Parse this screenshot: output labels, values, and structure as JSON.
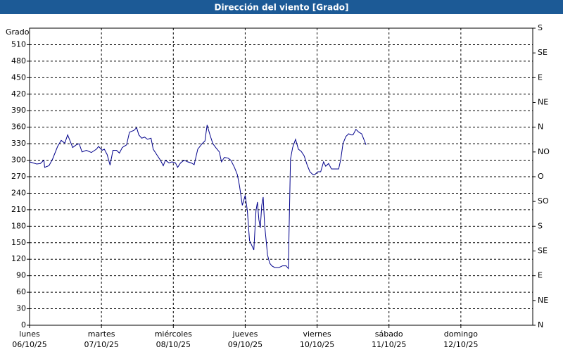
{
  "chart_data": {
    "type": "line",
    "title": "Dirección del viento [Grado]",
    "ylabel": "Grado",
    "color": "#00008b",
    "grid": true,
    "x": [
      0,
      0.1,
      0.15,
      0.2,
      0.21,
      0.27,
      0.32,
      0.39,
      0.44,
      0.49,
      0.53,
      0.57,
      0.6,
      0.65,
      0.69,
      0.73,
      0.79,
      0.86,
      0.93,
      0.96,
      1.01,
      1.04,
      1.08,
      1.12,
      1.16,
      1.21,
      1.25,
      1.29,
      1.35,
      1.39,
      1.45,
      1.49,
      1.52,
      1.56,
      1.6,
      1.64,
      1.69,
      1.72,
      1.77,
      1.82,
      1.86,
      1.89,
      1.94,
      1.98,
      2.03,
      2.06,
      2.1,
      2.15,
      2.2,
      2.25,
      2.29,
      2.34,
      2.4,
      2.44,
      2.47,
      2.51,
      2.55,
      2.59,
      2.64,
      2.67,
      2.71,
      2.76,
      2.8,
      2.85,
      2.89,
      2.92,
      2.96,
      3.0,
      3.03,
      3.06,
      3.12,
      3.15,
      3.17,
      3.19,
      3.21,
      3.23,
      3.25,
      3.27,
      3.29,
      3.31,
      3.34,
      3.37,
      3.41,
      3.47,
      3.52,
      3.57,
      3.6,
      3.63,
      3.66,
      3.7,
      3.74,
      3.78,
      3.82,
      3.86,
      3.9,
      3.94,
      3.97,
      4.01,
      4.05,
      4.09,
      4.12,
      4.16,
      4.2,
      4.26,
      4.3,
      4.33,
      4.36,
      4.4,
      4.44,
      4.47,
      4.5,
      4.54,
      4.58,
      4.62,
      4.65,
      4.68
    ],
    "values": [
      297,
      293,
      294,
      300,
      287,
      290,
      302,
      325,
      336,
      331,
      346,
      333,
      323,
      328,
      330,
      315,
      318,
      314,
      320,
      325,
      318,
      320,
      310,
      291,
      318,
      318,
      313,
      323,
      328,
      351,
      354,
      359,
      346,
      340,
      342,
      338,
      340,
      320,
      310,
      300,
      290,
      300,
      295,
      297,
      295,
      287,
      295,
      300,
      297,
      295,
      292,
      320,
      330,
      335,
      364,
      346,
      330,
      323,
      315,
      297,
      305,
      304,
      300,
      287,
      274,
      254,
      218,
      236,
      208,
      154,
      137,
      208,
      224,
      192,
      177,
      218,
      233,
      182,
      156,
      128,
      113,
      108,
      105,
      105,
      108,
      108,
      103,
      302,
      323,
      338,
      320,
      316,
      308,
      292,
      279,
      274,
      274,
      279,
      279,
      297,
      289,
      294,
      284,
      284,
      284,
      302,
      330,
      343,
      348,
      346,
      346,
      356,
      351,
      348,
      338,
      328
    ],
    "xlim": [
      0,
      7
    ],
    "xticks": [
      {
        "value": 0,
        "label": "lunes\n06/10/25"
      },
      {
        "value": 1,
        "label": "martes\n07/10/25"
      },
      {
        "value": 2,
        "label": "miércoles\n08/10/25"
      },
      {
        "value": 3,
        "label": "jueves\n09/10/25"
      },
      {
        "value": 4,
        "label": "viernes\n10/10/25"
      },
      {
        "value": 5,
        "label": "sábado\n11/10/25"
      },
      {
        "value": 6,
        "label": "domingo\n12/10/25"
      }
    ],
    "ylim": [
      0,
      540
    ],
    "yticks": [
      0,
      30,
      60,
      90,
      120,
      150,
      180,
      210,
      240,
      270,
      300,
      330,
      360,
      390,
      420,
      450,
      480,
      510
    ],
    "y2lim": [
      0,
      540
    ],
    "y2ticks": [
      {
        "value": 0,
        "label": "N"
      },
      {
        "value": 45,
        "label": "NE"
      },
      {
        "value": 90,
        "label": "E"
      },
      {
        "value": 135,
        "label": "SE"
      },
      {
        "value": 180,
        "label": "S"
      },
      {
        "value": 225,
        "label": "SO"
      },
      {
        "value": 270,
        "label": "O"
      },
      {
        "value": 315,
        "label": "NO"
      },
      {
        "value": 360,
        "label": "N"
      },
      {
        "value": 405,
        "label": "NE"
      },
      {
        "value": 450,
        "label": "E"
      },
      {
        "value": 495,
        "label": "SE"
      },
      {
        "value": 540,
        "label": "S"
      }
    ]
  }
}
